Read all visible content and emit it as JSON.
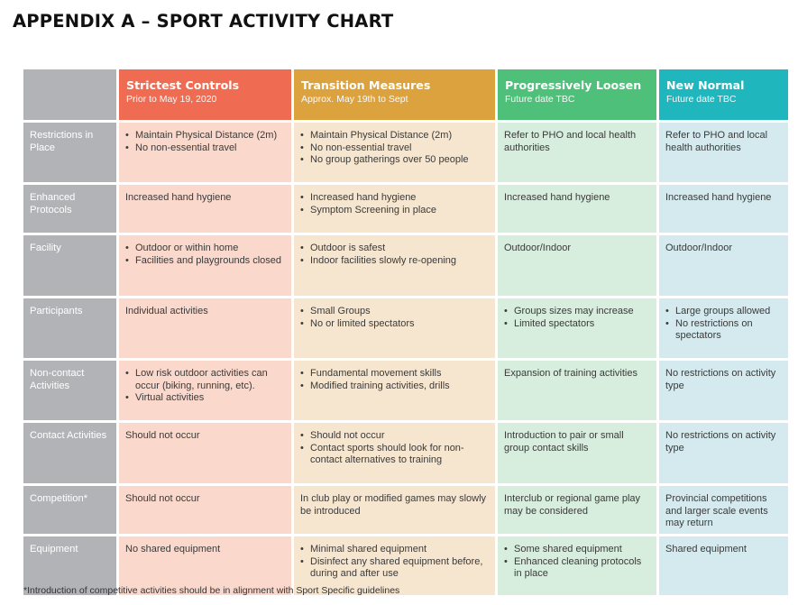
{
  "title": "APPENDIX A – SPORT ACTIVITY CHART",
  "columns": [
    {
      "title": "Strictest Controls",
      "subtitle": "Prior to May 19, 2020",
      "color": "#ef6c52"
    },
    {
      "title": "Transition Measures",
      "subtitle": "Approx. May 19th to Sept",
      "color": "#dca23e"
    },
    {
      "title": "Progressively Loosen",
      "subtitle": "Future date TBC",
      "color": "#4fc07a"
    },
    {
      "title": "New Normal",
      "subtitle": "Future date TBC",
      "color": "#20b6bd"
    }
  ],
  "rows": [
    {
      "label": "Restrictions in Place",
      "cells": [
        [
          "Maintain Physical Distance (2m)",
          "No non-essential travel"
        ],
        [
          "Maintain Physical Distance (2m)",
          "No non-essential travel",
          "No group gatherings over 50 people"
        ],
        "Refer to PHO and local health authorities",
        "Refer to PHO and local health authorities"
      ]
    },
    {
      "label": "Enhanced Protocols",
      "cells": [
        "Increased hand hygiene",
        [
          "Increased hand hygiene",
          "Symptom Screening in place"
        ],
        "Increased hand hygiene",
        "Increased hand hygiene"
      ]
    },
    {
      "label": "Facility",
      "cells": [
        [
          "Outdoor or within home",
          "Facilities and playgrounds closed"
        ],
        [
          "Outdoor is safest",
          "Indoor facilities slowly re-opening"
        ],
        "Outdoor/Indoor",
        "Outdoor/Indoor"
      ]
    },
    {
      "label": "Participants",
      "cells": [
        "Individual activities",
        [
          "Small Groups",
          "No or limited spectators"
        ],
        [
          "Groups sizes may increase",
          "Limited spectators"
        ],
        [
          "Large groups allowed",
          "No restrictions on spectators"
        ]
      ]
    },
    {
      "label": "Non-contact Activities",
      "cells": [
        [
          "Low risk outdoor activities can occur (biking, running, etc).",
          "Virtual activities"
        ],
        [
          "Fundamental movement skills",
          "Modified training activities, drills"
        ],
        "Expansion of training activities",
        "No restrictions on activity type"
      ]
    },
    {
      "label": "Contact Activities",
      "cells": [
        "Should not occur",
        [
          "Should not occur",
          "Contact sports should look for non-contact alternatives to training"
        ],
        "Introduction to pair or small group contact skills",
        "No restrictions on activity type"
      ]
    },
    {
      "label": "Competition*",
      "cells": [
        "Should not occur",
        "In club play or modified games may slowly be introduced",
        "Interclub or regional game play may be considered",
        "Provincial competitions and larger scale events may return"
      ]
    },
    {
      "label": "Equipment",
      "cells": [
        "No shared equipment",
        [
          "Minimal shared equipment",
          "Disinfect any shared equipment before, during and after use"
        ],
        [
          "Some shared equipment",
          "Enhanced cleaning protocols in place"
        ],
        "Shared equipment"
      ]
    }
  ],
  "footnote": "*Introduction of competitive activities should be in alignment with Sport Specific guidelines"
}
